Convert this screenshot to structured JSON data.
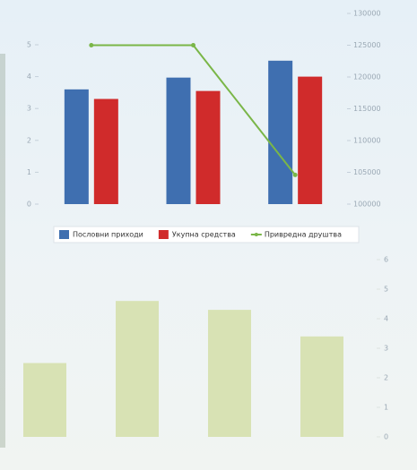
{
  "chart_data": [
    {
      "type": "bar",
      "categories": [
        null,
        null,
        null
      ],
      "series": [
        {
          "name": "Пословни приходи",
          "color": "#3f6fb0",
          "values": [
            3.6,
            3.97,
            4.5
          ]
        },
        {
          "name": "Укупна средства",
          "color": "#d02b2b",
          "values": [
            3.3,
            3.55,
            4.0
          ]
        },
        {
          "name": "Привредна друштва",
          "color": "#7ab648",
          "type": "line",
          "axis": "y2",
          "values": [
            125000,
            125000,
            104600
          ]
        }
      ],
      "ylim": [
        0,
        5
      ],
      "yticks": [
        0,
        1,
        2,
        3,
        4,
        5
      ],
      "y2lim": [
        100000,
        130000
      ],
      "y2ticks": [
        100000,
        105000,
        110000,
        115000,
        120000,
        125000,
        130000
      ],
      "legend": "bottom"
    },
    {
      "type": "bar",
      "categories": [
        null,
        null,
        null,
        null
      ],
      "values": [
        2.5,
        4.6,
        4.3,
        3.4
      ],
      "color": "#d8e2b4",
      "ylim": [
        0,
        6
      ],
      "yticks": [
        0,
        1,
        2,
        3,
        4,
        5,
        6
      ]
    }
  ]
}
